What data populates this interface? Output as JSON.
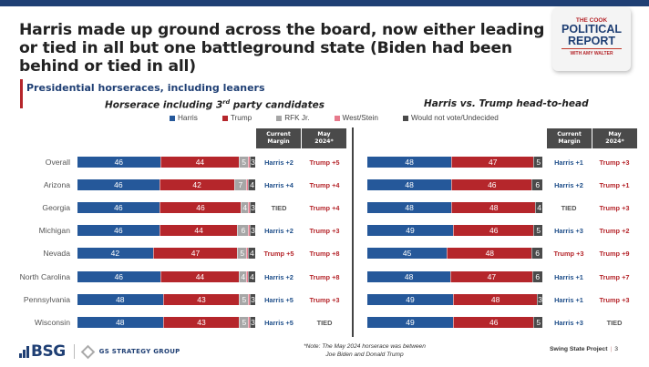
{
  "title": "Harris made up ground across the board, now either leading or tied in all but one battleground state (Biden had been behind or tied in all)",
  "logo": {
    "line1": "THE COOK",
    "line2": "POLITICAL",
    "line3": "REPORT",
    "line4": "WITH AMY WALTER"
  },
  "section_title": "Presidential horseraces, including leaners",
  "legend": [
    {
      "label": "Harris",
      "color": "#25589a"
    },
    {
      "label": "Trump",
      "color": "#b5262b"
    },
    {
      "label": "RFK Jr.",
      "color": "#a6a6a6"
    },
    {
      "label": "West/Stein",
      "color": "#e77a8c"
    },
    {
      "label": "Would not vote/Undecided",
      "color": "#4a4a4a"
    }
  ],
  "column_headers": {
    "current": [
      "Current",
      "Margin"
    ],
    "may": [
      "May",
      "2024*"
    ]
  },
  "chart_data": [
    {
      "type": "bar",
      "orientation": "horizontal-stacked",
      "title": "Horserace including 3rd party candidates",
      "title_parts": [
        "Horserace including 3",
        "rd",
        " party candidates"
      ],
      "categories": [
        "Overall",
        "Arizona",
        "Georgia",
        "Michigan",
        "Nevada",
        "North Carolina",
        "Pennsylvania",
        "Wisconsin"
      ],
      "series": [
        {
          "name": "Harris",
          "color": "#25589a",
          "values": [
            46,
            46,
            46,
            46,
            42,
            46,
            48,
            48
          ],
          "labeled": true
        },
        {
          "name": "Trump",
          "color": "#b5262b",
          "values": [
            44,
            42,
            46,
            44,
            47,
            44,
            43,
            43
          ],
          "labeled": true
        },
        {
          "name": "RFK Jr.",
          "color": "#a6a6a6",
          "values": [
            5,
            7,
            4,
            6,
            5,
            4,
            5,
            5
          ],
          "labeled": true
        },
        {
          "name": "West/Stein",
          "color": "#e77a8c",
          "values": [
            1,
            1,
            1,
            1,
            1,
            1,
            1,
            1
          ],
          "labeled": false
        },
        {
          "name": "Would not vote/Undecided",
          "color": "#4a4a4a",
          "values": [
            3,
            4,
            3,
            3,
            4,
            4,
            3,
            3
          ],
          "labeled": true
        }
      ],
      "current_margin": [
        {
          "text": "Harris +2",
          "party": "dem"
        },
        {
          "text": "Harris +4",
          "party": "dem"
        },
        {
          "text": "TIED",
          "party": "tie"
        },
        {
          "text": "Harris +2",
          "party": "dem"
        },
        {
          "text": "Trump +5",
          "party": "rep"
        },
        {
          "text": "Harris +2",
          "party": "dem"
        },
        {
          "text": "Harris +5",
          "party": "dem"
        },
        {
          "text": "Harris +5",
          "party": "dem"
        }
      ],
      "may_2024": [
        {
          "text": "Trump +5",
          "party": "rep"
        },
        {
          "text": "Trump +4",
          "party": "rep"
        },
        {
          "text": "Trump +4",
          "party": "rep"
        },
        {
          "text": "Trump +3",
          "party": "rep"
        },
        {
          "text": "Trump +8",
          "party": "rep"
        },
        {
          "text": "Trump +8",
          "party": "rep"
        },
        {
          "text": "Trump +3",
          "party": "rep"
        },
        {
          "text": "TIED",
          "party": "tie"
        }
      ],
      "xlim": [
        0,
        100
      ],
      "grid": false
    },
    {
      "type": "bar",
      "orientation": "horizontal-stacked",
      "title": "Harris vs. Trump head-to-head",
      "categories": [
        "Overall",
        "Arizona",
        "Georgia",
        "Michigan",
        "Nevada",
        "North Carolina",
        "Pennsylvania",
        "Wisconsin"
      ],
      "series": [
        {
          "name": "Harris",
          "color": "#25589a",
          "values": [
            48,
            48,
            48,
            49,
            45,
            48,
            49,
            49
          ],
          "labeled": true
        },
        {
          "name": "Trump",
          "color": "#b5262b",
          "values": [
            47,
            46,
            48,
            46,
            48,
            47,
            48,
            46
          ],
          "labeled": true
        },
        {
          "name": "Would not vote/Undecided",
          "color": "#4a4a4a",
          "values": [
            5,
            6,
            4,
            5,
            6,
            6,
            3,
            5
          ],
          "labeled": true
        }
      ],
      "current_margin": [
        {
          "text": "Harris +1",
          "party": "dem"
        },
        {
          "text": "Harris +2",
          "party": "dem"
        },
        {
          "text": "TIED",
          "party": "tie"
        },
        {
          "text": "Harris +3",
          "party": "dem"
        },
        {
          "text": "Trump +3",
          "party": "rep"
        },
        {
          "text": "Harris +1",
          "party": "dem"
        },
        {
          "text": "Harris +1",
          "party": "dem"
        },
        {
          "text": "Harris +3",
          "party": "dem"
        }
      ],
      "may_2024": [
        {
          "text": "Trump +3",
          "party": "rep"
        },
        {
          "text": "Trump +1",
          "party": "rep"
        },
        {
          "text": "Trump +3",
          "party": "rep"
        },
        {
          "text": "Trump +2",
          "party": "rep"
        },
        {
          "text": "Trump +9",
          "party": "rep"
        },
        {
          "text": "Trump +7",
          "party": "rep"
        },
        {
          "text": "Trump +3",
          "party": "rep"
        },
        {
          "text": "TIED",
          "party": "tie"
        }
      ],
      "xlim": [
        0,
        100
      ],
      "grid": false
    }
  ],
  "party_colors": {
    "dem": "#1f4f8a",
    "rep": "#b5262b",
    "tie": "#555555"
  },
  "footer": {
    "bsg": "BSG",
    "gs": "GS STRATEGY GROUP",
    "note_line1": "*Note: The May 2024 horserace was between",
    "note_line2": "Joe Biden and Donald Trump",
    "project": "Swing State Project",
    "page": "3"
  }
}
